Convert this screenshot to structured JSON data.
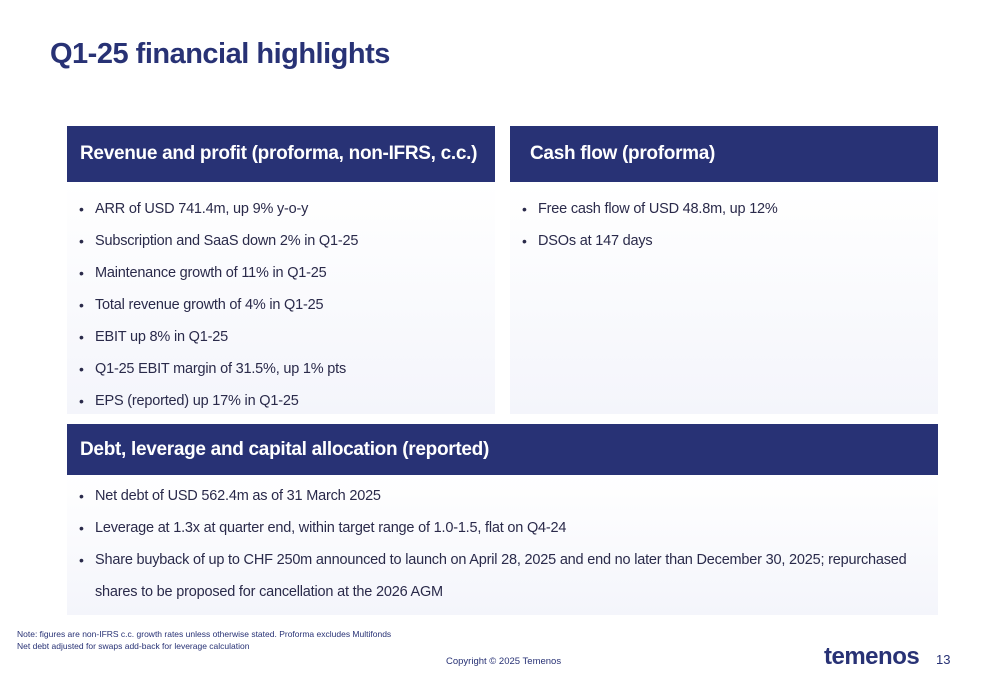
{
  "title": "Q1-25 financial highlights",
  "panels": {
    "revenue": {
      "header": "Revenue and profit (proforma, non-IFRS, c.c.)",
      "items": [
        "ARR of USD 741.4m, up 9% y-o-y",
        "Subscription and SaaS down 2% in Q1-25",
        "Maintenance growth of 11% in Q1-25",
        "Total revenue growth of 4% in Q1-25",
        "EBIT up 8% in Q1-25",
        "Q1-25 EBIT margin of 31.5%, up 1% pts",
        "EPS (reported) up 17% in Q1-25"
      ]
    },
    "cash": {
      "header": "Cash flow (proforma)",
      "items": [
        "Free cash flow of USD 48.8m, up 12%",
        "DSOs at 147 days"
      ]
    },
    "debt": {
      "header": "Debt, leverage and capital allocation (reported)",
      "items": [
        "Net debt of USD 562.4m as of 31 March 2025",
        "Leverage at 1.3x at quarter end, within target range of 1.0-1.5, flat on Q4-24",
        "Share buyback of up to CHF 250m announced to launch on April 28, 2025 and end no later than December 30, 2025; repurchased shares to be proposed for cancellation at the 2026 AGM"
      ]
    }
  },
  "footnotes": [
    "Note: figures are non-IFRS c.c. growth rates unless otherwise stated. Proforma excludes Multifonds",
    "Net debt adjusted for swaps add-back for leverage calculation"
  ],
  "copyright": "Copyright © 2025 Temenos",
  "logo_text": "temenos",
  "page_number": "13",
  "colors": {
    "brand_navy": "#283275",
    "body_text": "#2a2a4a",
    "panel_body_gradient_end": "#f4f5fb"
  }
}
